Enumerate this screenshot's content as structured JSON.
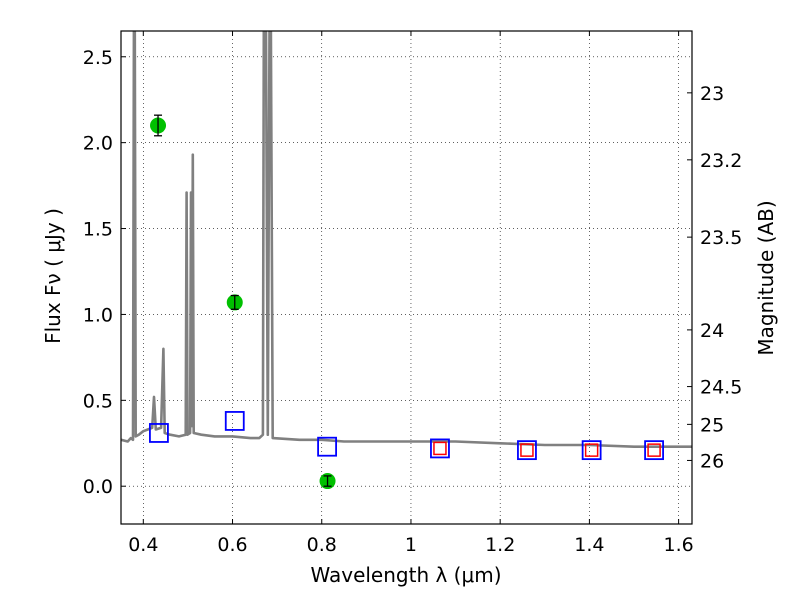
{
  "chart_data": {
    "type": "scatter",
    "xlabel": "Wavelength  λ (μm)",
    "ylabel": "Flux  Fν  ( μJy )",
    "y2label": "Magnitude (AB)",
    "xlim": [
      0.35,
      1.63
    ],
    "ylim": [
      -0.22,
      2.65
    ],
    "xticks": [
      0.4,
      0.6,
      0.8,
      1.0,
      1.2,
      1.4,
      1.6
    ],
    "xtick_labels": [
      "0.4",
      "0.6",
      "0.8",
      "1",
      "1.2",
      "1.4",
      "1.6"
    ],
    "yticks": [
      0.0,
      0.5,
      1.0,
      1.5,
      2.0,
      2.5
    ],
    "ytick_labels": [
      "0.0",
      "0.5",
      "1.0",
      "1.5",
      "2.0",
      "2.5"
    ],
    "y2ticks": [
      {
        "label": "23",
        "flux": 2.29
      },
      {
        "label": "23.2",
        "flux": 1.9
      },
      {
        "label": "23.5",
        "flux": 1.45
      },
      {
        "label": "24",
        "flux": 0.91
      },
      {
        "label": "24.5",
        "flux": 0.58
      },
      {
        "label": "25",
        "flux": 0.36
      },
      {
        "label": "26",
        "flux": 0.15
      }
    ],
    "grid": true,
    "series": [
      {
        "style": "line",
        "color": "#808080",
        "points": [
          [
            0.35,
            0.27
          ],
          [
            0.365,
            0.26
          ],
          [
            0.372,
            0.28
          ],
          [
            0.377,
            0.27
          ],
          [
            0.379,
            2.65
          ],
          [
            0.381,
            2.65
          ],
          [
            0.383,
            0.29
          ],
          [
            0.39,
            0.3
          ],
          [
            0.4,
            0.32
          ],
          [
            0.41,
            0.33
          ],
          [
            0.42,
            0.34
          ],
          [
            0.424,
            0.52
          ],
          [
            0.428,
            0.33
          ],
          [
            0.44,
            0.34
          ],
          [
            0.445,
            0.8
          ],
          [
            0.448,
            0.31
          ],
          [
            0.46,
            0.3
          ],
          [
            0.48,
            0.29
          ],
          [
            0.495,
            0.3
          ],
          [
            0.497,
            1.71
          ],
          [
            0.499,
            0.3
          ],
          [
            0.505,
            0.31
          ],
          [
            0.507,
            1.71
          ],
          [
            0.509,
            0.35
          ],
          [
            0.511,
            1.93
          ],
          [
            0.513,
            0.31
          ],
          [
            0.53,
            0.3
          ],
          [
            0.56,
            0.29
          ],
          [
            0.6,
            0.29
          ],
          [
            0.64,
            0.28
          ],
          [
            0.66,
            0.28
          ],
          [
            0.668,
            0.3
          ],
          [
            0.67,
            2.65
          ],
          [
            0.675,
            2.65
          ],
          [
            0.679,
            0.3
          ],
          [
            0.683,
            2.65
          ],
          [
            0.686,
            2.65
          ],
          [
            0.69,
            0.28
          ],
          [
            0.75,
            0.27
          ],
          [
            0.8,
            0.27
          ],
          [
            0.85,
            0.26
          ],
          [
            0.9,
            0.26
          ],
          [
            1.0,
            0.26
          ],
          [
            1.1,
            0.26
          ],
          [
            1.2,
            0.25
          ],
          [
            1.3,
            0.24
          ],
          [
            1.4,
            0.24
          ],
          [
            1.5,
            0.23
          ],
          [
            1.63,
            0.23
          ]
        ]
      },
      {
        "style": "markers",
        "marker": "circle",
        "color": "#00c000",
        "points": [
          {
            "x": 0.433,
            "y": 2.1,
            "err": 0.06
          },
          {
            "x": 0.605,
            "y": 1.07,
            "err": 0.04
          },
          {
            "x": 0.813,
            "y": 0.03,
            "err": 0.03
          }
        ]
      },
      {
        "style": "markers",
        "marker": "open-square",
        "color": "#0000ff",
        "points": [
          {
            "x": 0.435,
            "y": 0.31
          },
          {
            "x": 0.605,
            "y": 0.38
          },
          {
            "x": 0.812,
            "y": 0.23
          },
          {
            "x": 1.065,
            "y": 0.22
          },
          {
            "x": 1.26,
            "y": 0.21
          },
          {
            "x": 1.405,
            "y": 0.21
          },
          {
            "x": 1.545,
            "y": 0.21
          }
        ]
      },
      {
        "style": "markers",
        "marker": "open-square-small",
        "color": "#ff0000",
        "points": [
          {
            "x": 1.065,
            "y": 0.22
          },
          {
            "x": 1.26,
            "y": 0.21
          },
          {
            "x": 1.405,
            "y": 0.21
          },
          {
            "x": 1.545,
            "y": 0.21
          }
        ]
      }
    ]
  }
}
